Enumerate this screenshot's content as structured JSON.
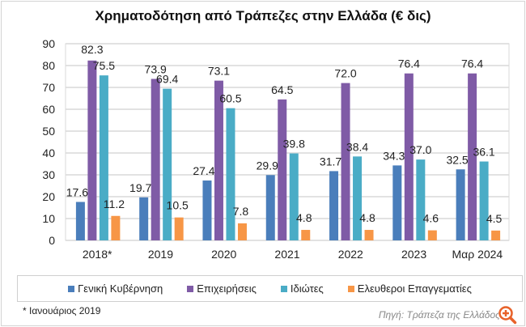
{
  "chart_data": {
    "type": "bar",
    "title": "Χρηματοδότηση από Τράπεζες στην Ελλάδα (€ δις)",
    "categories": [
      "2018*",
      "2019",
      "2020",
      "2021",
      "2022",
      "2023",
      "Μαρ 2024"
    ],
    "series": [
      {
        "name": "Γενική Κυβέρνηση",
        "color": "#4a7ebb",
        "values": [
          17.6,
          19.7,
          27.4,
          29.9,
          31.7,
          34.3,
          32.5
        ]
      },
      {
        "name": "Επιχειρήσεις",
        "color": "#7f5ba6",
        "values": [
          82.3,
          73.9,
          73.1,
          64.5,
          72.0,
          76.4,
          76.4
        ]
      },
      {
        "name": "Ιδιώτες",
        "color": "#4aacc6",
        "values": [
          75.5,
          69.4,
          60.5,
          39.8,
          38.4,
          37.0,
          36.1
        ]
      },
      {
        "name": "Ελευθεροι Επαγγεματίες",
        "color": "#f79646",
        "values": [
          11.2,
          10.5,
          7.8,
          4.8,
          4.8,
          4.6,
          4.5
        ]
      }
    ],
    "ylim": [
      0,
      90
    ],
    "yticks": [
      0,
      10,
      20,
      30,
      40,
      50,
      60,
      70,
      80,
      90
    ],
    "grid": true,
    "legend_position": "bottom",
    "xlabel": "",
    "ylabel": ""
  },
  "footnote": "* Ιανουάριος 2019",
  "source": "Πηγή: Τράπεζα της Ελλάδος"
}
